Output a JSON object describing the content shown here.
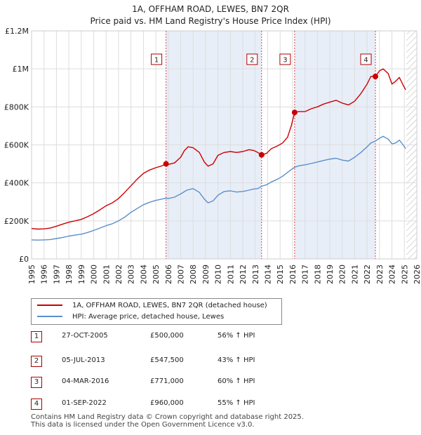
{
  "title_line1": "1A, OFFHAM ROAD, LEWES, BN7 2QR",
  "title_line2": "Price paid vs. HM Land Registry's House Price Index (HPI)",
  "colors": {
    "property": "#cc0000",
    "hpi": "#5b8fc9",
    "shade": "#e8eef8",
    "grid": "#dddddd"
  },
  "legend": {
    "property_label": "1A, OFFHAM ROAD, LEWES, BN7 2QR (detached house)",
    "hpi_label": "HPI: Average price, detached house, Lewes"
  },
  "sales": [
    {
      "num": "1",
      "date": "27-OCT-2005",
      "price": "£500,000",
      "hpi": "56% ↑ HPI"
    },
    {
      "num": "2",
      "date": "05-JUL-2013",
      "price": "£547,500",
      "hpi": "43% ↑ HPI"
    },
    {
      "num": "3",
      "date": "04-MAR-2016",
      "price": "£771,000",
      "hpi": "60% ↑ HPI"
    },
    {
      "num": "4",
      "date": "01-SEP-2022",
      "price": "£960,000",
      "hpi": "55% ↑ HPI"
    }
  ],
  "footer": {
    "line1": "Contains HM Land Registry data © Crown copyright and database right 2025.",
    "line2": "This data is licensed under the Open Government Licence v3.0."
  },
  "chart_data": {
    "type": "line",
    "title": "1A, OFFHAM ROAD, LEWES, BN7 2QR",
    "subtitle": "Price paid vs. HM Land Registry's House Price Index (HPI)",
    "xlabel": "",
    "ylabel": "",
    "xlim": [
      1995,
      2026
    ],
    "ylim": [
      0,
      1200000
    ],
    "x_ticks": [
      "1995",
      "1996",
      "1997",
      "1998",
      "1999",
      "2000",
      "2001",
      "2002",
      "2003",
      "2004",
      "2005",
      "2006",
      "2007",
      "2008",
      "2009",
      "2010",
      "2011",
      "2012",
      "2013",
      "2014",
      "2015",
      "2016",
      "2017",
      "2018",
      "2019",
      "2020",
      "2021",
      "2022",
      "2023",
      "2024",
      "2025",
      "2026"
    ],
    "y_ticks": [
      {
        "value": 0,
        "label": "£0"
      },
      {
        "value": 200000,
        "label": "£200K"
      },
      {
        "value": 400000,
        "label": "£400K"
      },
      {
        "value": 600000,
        "label": "£600K"
      },
      {
        "value": 800000,
        "label": "£800K"
      },
      {
        "value": 1000000,
        "label": "£1M"
      },
      {
        "value": 1200000,
        "label": "£1.2M"
      }
    ],
    "series": [
      {
        "name": "1A, OFFHAM ROAD, LEWES, BN7 2QR (detached house)",
        "color": "#cc0000",
        "points": [
          [
            1995.0,
            160000
          ],
          [
            1995.5,
            157000
          ],
          [
            1996.0,
            158000
          ],
          [
            1996.5,
            162000
          ],
          [
            1997.0,
            172000
          ],
          [
            1997.5,
            183000
          ],
          [
            1998.0,
            193000
          ],
          [
            1998.5,
            200000
          ],
          [
            1999.0,
            208000
          ],
          [
            1999.5,
            222000
          ],
          [
            2000.0,
            238000
          ],
          [
            2000.5,
            258000
          ],
          [
            2001.0,
            280000
          ],
          [
            2001.5,
            295000
          ],
          [
            2002.0,
            318000
          ],
          [
            2002.5,
            350000
          ],
          [
            2003.0,
            385000
          ],
          [
            2003.5,
            420000
          ],
          [
            2004.0,
            450000
          ],
          [
            2004.5,
            468000
          ],
          [
            2005.0,
            480000
          ],
          [
            2005.5,
            490000
          ],
          [
            2005.82,
            500000
          ],
          [
            2006.0,
            497000
          ],
          [
            2006.5,
            505000
          ],
          [
            2007.0,
            535000
          ],
          [
            2007.3,
            570000
          ],
          [
            2007.6,
            590000
          ],
          [
            2008.0,
            585000
          ],
          [
            2008.5,
            560000
          ],
          [
            2008.9,
            510000
          ],
          [
            2009.2,
            488000
          ],
          [
            2009.6,
            500000
          ],
          [
            2010.0,
            545000
          ],
          [
            2010.5,
            560000
          ],
          [
            2011.0,
            565000
          ],
          [
            2011.5,
            560000
          ],
          [
            2012.0,
            565000
          ],
          [
            2012.5,
            575000
          ],
          [
            2012.9,
            570000
          ],
          [
            2013.2,
            560000
          ],
          [
            2013.51,
            547500
          ],
          [
            2013.9,
            555000
          ],
          [
            2014.3,
            580000
          ],
          [
            2014.8,
            595000
          ],
          [
            2015.2,
            610000
          ],
          [
            2015.6,
            640000
          ],
          [
            2015.9,
            700000
          ],
          [
            2016.17,
            771000
          ],
          [
            2016.5,
            775000
          ],
          [
            2017.0,
            775000
          ],
          [
            2017.5,
            790000
          ],
          [
            2018.0,
            800000
          ],
          [
            2018.5,
            815000
          ],
          [
            2019.0,
            825000
          ],
          [
            2019.5,
            835000
          ],
          [
            2020.0,
            820000
          ],
          [
            2020.5,
            810000
          ],
          [
            2021.0,
            830000
          ],
          [
            2021.5,
            870000
          ],
          [
            2022.0,
            920000
          ],
          [
            2022.3,
            960000
          ],
          [
            2022.67,
            960000
          ],
          [
            2023.0,
            990000
          ],
          [
            2023.3,
            1000000
          ],
          [
            2023.7,
            975000
          ],
          [
            2024.0,
            920000
          ],
          [
            2024.3,
            935000
          ],
          [
            2024.6,
            955000
          ],
          [
            2024.9,
            915000
          ],
          [
            2025.1,
            890000
          ]
        ]
      },
      {
        "name": "HPI: Average price, detached house, Lewes",
        "color": "#5b8fc9",
        "points": [
          [
            1995.0,
            100000
          ],
          [
            1995.5,
            99000
          ],
          [
            1996.0,
            100000
          ],
          [
            1996.5,
            102000
          ],
          [
            1997.0,
            107000
          ],
          [
            1997.5,
            113000
          ],
          [
            1998.0,
            120000
          ],
          [
            1998.5,
            125000
          ],
          [
            1999.0,
            130000
          ],
          [
            1999.5,
            139000
          ],
          [
            2000.0,
            150000
          ],
          [
            2000.5,
            162000
          ],
          [
            2001.0,
            175000
          ],
          [
            2001.5,
            185000
          ],
          [
            2002.0,
            200000
          ],
          [
            2002.5,
            220000
          ],
          [
            2003.0,
            245000
          ],
          [
            2003.5,
            265000
          ],
          [
            2004.0,
            285000
          ],
          [
            2004.5,
            298000
          ],
          [
            2005.0,
            308000
          ],
          [
            2005.5,
            315000
          ],
          [
            2005.82,
            320000
          ],
          [
            2006.0,
            318000
          ],
          [
            2006.5,
            325000
          ],
          [
            2007.0,
            342000
          ],
          [
            2007.5,
            362000
          ],
          [
            2008.0,
            370000
          ],
          [
            2008.5,
            350000
          ],
          [
            2008.9,
            315000
          ],
          [
            2009.2,
            295000
          ],
          [
            2009.6,
            305000
          ],
          [
            2010.0,
            335000
          ],
          [
            2010.5,
            355000
          ],
          [
            2011.0,
            358000
          ],
          [
            2011.5,
            352000
          ],
          [
            2012.0,
            355000
          ],
          [
            2012.5,
            362000
          ],
          [
            2012.9,
            368000
          ],
          [
            2013.2,
            370000
          ],
          [
            2013.51,
            382000
          ],
          [
            2013.9,
            390000
          ],
          [
            2014.3,
            405000
          ],
          [
            2014.8,
            420000
          ],
          [
            2015.2,
            435000
          ],
          [
            2015.6,
            455000
          ],
          [
            2015.9,
            470000
          ],
          [
            2016.17,
            482000
          ],
          [
            2016.5,
            490000
          ],
          [
            2017.0,
            495000
          ],
          [
            2017.5,
            502000
          ],
          [
            2018.0,
            510000
          ],
          [
            2018.5,
            518000
          ],
          [
            2019.0,
            525000
          ],
          [
            2019.5,
            530000
          ],
          [
            2020.0,
            520000
          ],
          [
            2020.5,
            515000
          ],
          [
            2021.0,
            535000
          ],
          [
            2021.5,
            560000
          ],
          [
            2022.0,
            590000
          ],
          [
            2022.3,
            610000
          ],
          [
            2022.67,
            620000
          ],
          [
            2023.0,
            635000
          ],
          [
            2023.3,
            645000
          ],
          [
            2023.7,
            630000
          ],
          [
            2024.0,
            605000
          ],
          [
            2024.3,
            610000
          ],
          [
            2024.6,
            625000
          ],
          [
            2024.9,
            600000
          ],
          [
            2025.1,
            580000
          ]
        ]
      }
    ],
    "sale_markers": [
      {
        "label": "1",
        "x": 2005.82,
        "y": 500000
      },
      {
        "label": "2",
        "x": 2013.51,
        "y": 547500
      },
      {
        "label": "3",
        "x": 2016.17,
        "y": 771000
      },
      {
        "label": "4",
        "x": 2022.67,
        "y": 960000
      }
    ],
    "shaded_ranges": [
      [
        2005.82,
        2013.51
      ],
      [
        2016.17,
        2022.67
      ]
    ],
    "future_hatch_from": 2025.17
  }
}
